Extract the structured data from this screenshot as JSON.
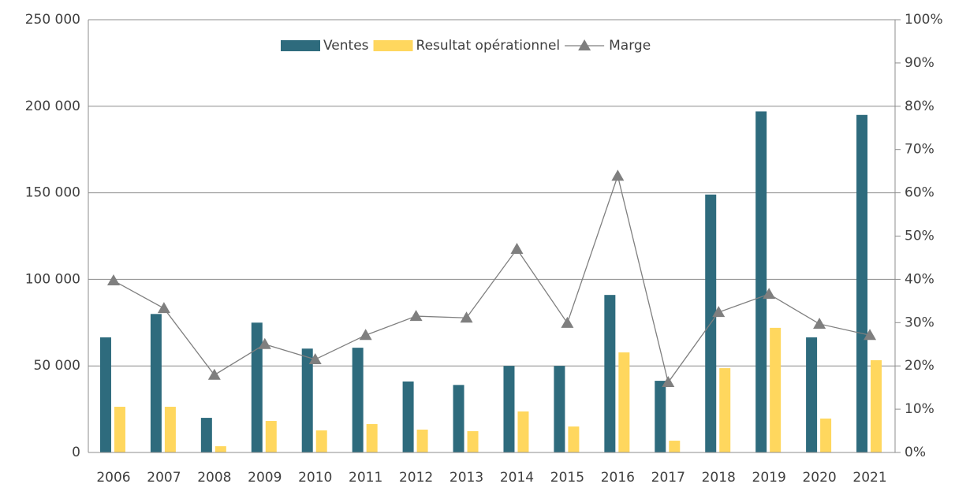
{
  "chart_data": {
    "type": "bar_line",
    "categories": [
      "2006",
      "2007",
      "2008",
      "2009",
      "2010",
      "2011",
      "2012",
      "2013",
      "2014",
      "2015",
      "2016",
      "2017",
      "2018",
      "2019",
      "2020",
      "2021"
    ],
    "series": [
      {
        "name": "Ventes",
        "color": "#2e6b7d",
        "type": "bar",
        "values": [
          66500,
          80000,
          20000,
          75000,
          60000,
          60500,
          41000,
          39000,
          50000,
          50000,
          91000,
          41400,
          149000,
          197000,
          66500,
          195000
        ]
      },
      {
        "name": "Resultat opérationnel",
        "color": "#ffd75e",
        "type": "bar",
        "values": [
          26400,
          26400,
          3600,
          18200,
          12750,
          16400,
          13200,
          12300,
          23700,
          15000,
          57800,
          6800,
          48700,
          72000,
          19600,
          53300
        ]
      },
      {
        "name": "Marge",
        "color": "#7f7f7f",
        "type": "line",
        "axis": "y2",
        "values": [
          39.7,
          33.3,
          17.9,
          25,
          21.5,
          27.1,
          31.5,
          31.1,
          47,
          29.9,
          63.9,
          16.2,
          32.4,
          36.6,
          29.7,
          27.1
        ]
      }
    ],
    "ylim": [
      0,
      250000
    ],
    "yticks": [
      {
        "value": 0,
        "label": "0"
      },
      {
        "value": 50000,
        "label": "50 000"
      },
      {
        "value": 100000,
        "label": "100 000"
      },
      {
        "value": 150000,
        "label": "150 000"
      },
      {
        "value": 200000,
        "label": "200 000"
      },
      {
        "value": 250000,
        "label": "250 000"
      }
    ],
    "y2lim": [
      0,
      100
    ],
    "y2ticks": [
      {
        "value": 0,
        "label": "0%"
      },
      {
        "value": 10,
        "label": "10%"
      },
      {
        "value": 20,
        "label": "20%"
      },
      {
        "value": 30,
        "label": "30%"
      },
      {
        "value": 40,
        "label": "40%"
      },
      {
        "value": 50,
        "label": "50%"
      },
      {
        "value": 60,
        "label": "60%"
      },
      {
        "value": 70,
        "label": "70%"
      },
      {
        "value": 80,
        "label": "80%"
      },
      {
        "value": 90,
        "label": "90%"
      },
      {
        "value": 100,
        "label": "100%"
      }
    ],
    "grid": true,
    "legend": "top"
  }
}
